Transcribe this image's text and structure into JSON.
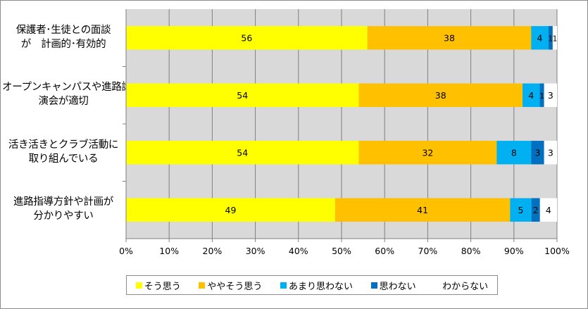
{
  "chart_data": {
    "type": "bar",
    "orientation": "horizontal",
    "stacked": true,
    "percent": true,
    "categories": [
      [
        "保護者･生徒との面談",
        "が　計画的･有効的"
      ],
      [
        "オープンキャンパスや進路講",
        "演会が適切"
      ],
      [
        "活き活きとクラブ活動に",
        "取り組んでいる"
      ],
      [
        "進路指導方針や計画が",
        "分かりやすい"
      ]
    ],
    "series": [
      {
        "name": "そう思う",
        "color": "#ffff00",
        "values": [
          56,
          54,
          54,
          49
        ],
        "labels": [
          "56",
          "54",
          "54",
          "49"
        ]
      },
      {
        "name": "ややそう思う",
        "color": "#ffc000",
        "values": [
          38,
          38,
          32,
          41
        ],
        "labels": [
          "38",
          "38",
          "32",
          "41"
        ]
      },
      {
        "name": "あまり思わない",
        "color": "#00b0f0",
        "values": [
          4,
          4,
          8,
          5
        ],
        "labels": [
          "4",
          "4",
          "8",
          "5"
        ]
      },
      {
        "name": "思わない",
        "color": "#0070c0",
        "values": [
          1,
          1,
          3,
          2
        ],
        "labels": [
          "1",
          "1",
          "3",
          "2"
        ]
      },
      {
        "name": "わからない",
        "color": "#ffffff",
        "values": [
          1,
          3,
          3,
          4
        ],
        "labels": [
          "1",
          "3",
          "3",
          "4"
        ]
      }
    ],
    "x_ticks": [
      "0%",
      "10%",
      "20%",
      "30%",
      "40%",
      "50%",
      "60%",
      "70%",
      "80%",
      "90%",
      "100%"
    ],
    "xlim": [
      0,
      100
    ],
    "grid": true,
    "plot_background": "#d9d9d9",
    "legend": "bottom",
    "title": "",
    "xlabel": "",
    "ylabel": ""
  }
}
